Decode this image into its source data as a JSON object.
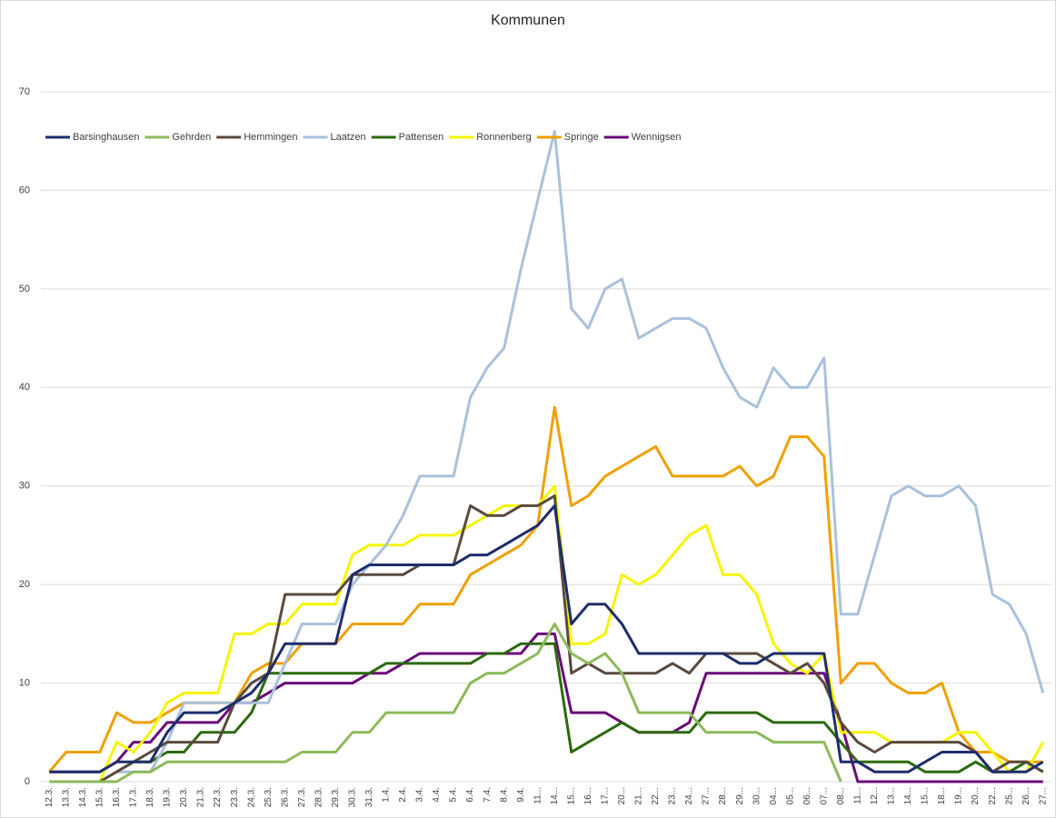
{
  "chart_data": {
    "type": "line",
    "title": "Kommunen",
    "categories": [
      "12.3.",
      "13.3.",
      "14.3.",
      "15.3.",
      "16.3.",
      "17.3.",
      "18.3.",
      "19.3.",
      "20.3.",
      "21.3.",
      "22.3.",
      "23.3.",
      "24.3.",
      "25.3.",
      "26.3.",
      "27.3.",
      "28.3.",
      "29.3.",
      "30.3.",
      "31.3.",
      "1.4.",
      "2.4.",
      "3.4.",
      "4.4.",
      "5.4.",
      "6.4.",
      "7.4.",
      "8.4.",
      "9.4.",
      "11...",
      "14...",
      "15...",
      "16...",
      "17...",
      "20...",
      "21...",
      "22...",
      "23...",
      "24...",
      "27...",
      "28...",
      "29...",
      "30...",
      "04...",
      "05...",
      "06...",
      "07...",
      "08...",
      "11...",
      "12...",
      "13...",
      "14...",
      "15...",
      "18...",
      "19...",
      "20...",
      "22...",
      "25...",
      "26...",
      "27..."
    ],
    "series": [
      {
        "name": "Barsinghausen",
        "color": "#1f2d6b",
        "values": [
          1,
          1,
          1,
          1,
          2,
          2,
          2,
          5,
          7,
          7,
          7,
          8,
          9,
          11,
          14,
          14,
          14,
          14,
          21,
          22,
          22,
          22,
          22,
          22,
          22,
          23,
          23,
          24,
          25,
          26,
          28,
          16,
          18,
          18,
          16,
          13,
          13,
          13,
          13,
          13,
          13,
          12,
          12,
          13,
          13,
          13,
          13,
          2,
          2,
          1,
          1,
          1,
          2,
          3,
          3,
          3,
          1,
          1,
          1,
          2
        ]
      },
      {
        "name": "Gehrden",
        "color": "#8dba5a",
        "values": [
          0,
          0,
          0,
          0,
          0,
          1,
          1,
          2,
          2,
          2,
          2,
          2,
          2,
          2,
          2,
          3,
          3,
          3,
          5,
          5,
          7,
          7,
          7,
          7,
          7,
          10,
          11,
          11,
          12,
          13,
          16,
          13,
          12,
          13,
          11,
          7,
          7,
          7,
          7,
          5,
          5,
          5,
          5,
          4,
          4,
          4,
          4,
          0,
          null,
          null,
          null,
          null,
          null,
          null,
          null,
          null,
          null,
          null,
          null,
          null
        ]
      },
      {
        "name": "Hemmingen",
        "color": "#5a4a3f",
        "values": [
          null,
          null,
          null,
          0,
          1,
          2,
          3,
          4,
          4,
          4,
          4,
          8,
          10,
          11,
          19,
          19,
          19,
          19,
          21,
          21,
          21,
          21,
          22,
          22,
          22,
          28,
          27,
          27,
          28,
          28,
          29,
          11,
          12,
          11,
          11,
          11,
          11,
          12,
          11,
          13,
          13,
          13,
          13,
          12,
          11,
          12,
          10,
          6,
          4,
          3,
          4,
          4,
          4,
          4,
          4,
          3,
          1,
          2,
          2,
          1
        ]
      },
      {
        "name": "Laatzen",
        "color": "#a9c1dc",
        "values": [
          null,
          null,
          null,
          0,
          1,
          1,
          1,
          4,
          8,
          8,
          8,
          8,
          8,
          8,
          12,
          16,
          16,
          16,
          20,
          22,
          24,
          27,
          31,
          31,
          31,
          39,
          42,
          44,
          52,
          59,
          66,
          48,
          46,
          50,
          51,
          45,
          46,
          47,
          47,
          46,
          42,
          39,
          38,
          42,
          40,
          40,
          43,
          17,
          17,
          23,
          29,
          30,
          29,
          29,
          30,
          28,
          19,
          18,
          15,
          9
        ]
      },
      {
        "name": "Pattensen",
        "color": "#2c6a0e",
        "values": [
          null,
          null,
          null,
          null,
          1,
          2,
          2,
          3,
          3,
          5,
          5,
          5,
          7,
          11,
          11,
          11,
          11,
          11,
          11,
          11,
          12,
          12,
          12,
          12,
          12,
          12,
          13,
          13,
          14,
          14,
          14,
          3,
          4,
          5,
          6,
          5,
          5,
          5,
          5,
          7,
          7,
          7,
          7,
          6,
          6,
          6,
          6,
          4,
          2,
          2,
          2,
          2,
          1,
          1,
          1,
          2,
          1,
          1,
          2,
          1
        ]
      },
      {
        "name": "Ronnenberg",
        "color": "#f5f500",
        "values": [
          0,
          0,
          0,
          0,
          4,
          3,
          5,
          8,
          9,
          9,
          9,
          15,
          15,
          16,
          16,
          18,
          18,
          18,
          23,
          24,
          24,
          24,
          25,
          25,
          25,
          26,
          27,
          28,
          28,
          28,
          30,
          14,
          14,
          15,
          21,
          20,
          21,
          23,
          25,
          26,
          21,
          21,
          19,
          14,
          12,
          11,
          13,
          5,
          5,
          5,
          4,
          4,
          4,
          4,
          5,
          5,
          3,
          1,
          1,
          4
        ]
      },
      {
        "name": "Springe",
        "color": "#f0a000",
        "values": [
          1,
          3,
          3,
          3,
          7,
          6,
          6,
          7,
          8,
          8,
          8,
          8,
          11,
          12,
          12,
          14,
          14,
          14,
          16,
          16,
          16,
          16,
          18,
          18,
          18,
          21,
          22,
          23,
          24,
          26,
          38,
          28,
          29,
          31,
          32,
          33,
          34,
          31,
          31,
          31,
          31,
          32,
          30,
          31,
          35,
          35,
          33,
          10,
          12,
          12,
          10,
          9,
          9,
          10,
          5,
          3,
          3,
          2,
          2,
          2
        ]
      },
      {
        "name": "Wennigsen",
        "color": "#6a0a7a",
        "values": [
          1,
          1,
          1,
          1,
          2,
          4,
          4,
          6,
          6,
          6,
          6,
          8,
          8,
          9,
          10,
          10,
          10,
          10,
          10,
          11,
          11,
          12,
          13,
          13,
          13,
          13,
          13,
          13,
          13,
          15,
          15,
          7,
          7,
          7,
          6,
          5,
          5,
          5,
          6,
          11,
          11,
          11,
          11,
          11,
          11,
          11,
          11,
          6,
          0,
          0,
          0,
          0,
          0,
          0,
          0,
          0,
          0,
          0,
          0,
          0
        ]
      }
    ],
    "ylim": [
      0,
      70
    ],
    "yticks": [
      0,
      10,
      20,
      30,
      40,
      50,
      60,
      70
    ],
    "grid": true
  }
}
